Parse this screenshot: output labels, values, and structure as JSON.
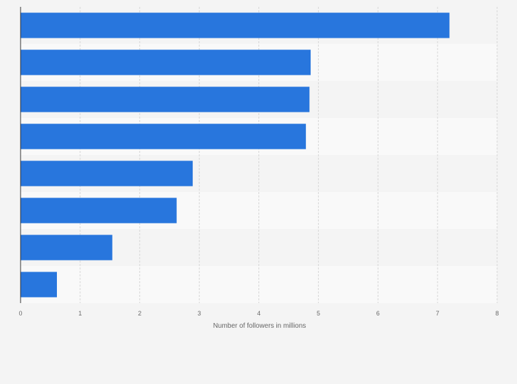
{
  "chart_data": {
    "type": "bar",
    "orientation": "horizontal",
    "categories": [
      "",
      "",
      "",
      "",
      "",
      "",
      "",
      ""
    ],
    "values": [
      7.2,
      4.87,
      4.85,
      4.79,
      2.89,
      2.62,
      1.54,
      0.61
    ],
    "title": "",
    "xlabel": "Number of followers in millions",
    "ylabel": "",
    "xlim": [
      0,
      8
    ],
    "x_ticks": [
      "0",
      "1",
      "2",
      "3",
      "4",
      "5",
      "6",
      "7",
      "8"
    ],
    "grid": "vertical dashed",
    "legend": "none",
    "colors": {
      "bar": "#2876dd",
      "background": "#f4f4f4",
      "band_light": "#f9f9f9",
      "band_dark": "#f4f4f4",
      "grid": "#d6d6d6",
      "axis": "#333333",
      "tick_text": "#666666"
    }
  }
}
